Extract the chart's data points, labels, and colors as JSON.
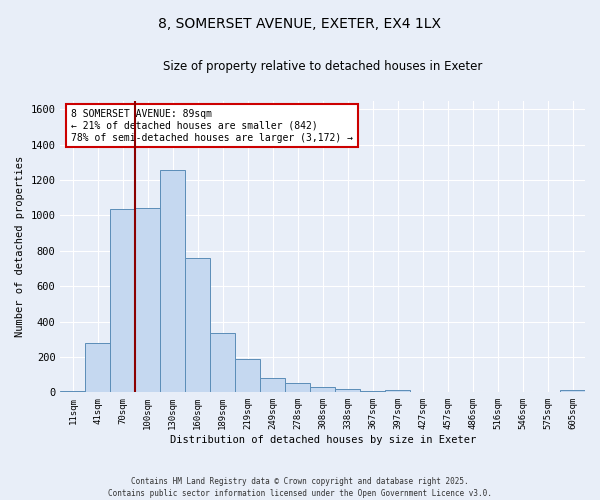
{
  "title": "8, SOMERSET AVENUE, EXETER, EX4 1LX",
  "subtitle": "Size of property relative to detached houses in Exeter",
  "xlabel": "Distribution of detached houses by size in Exeter",
  "ylabel": "Number of detached properties",
  "categories": [
    "11sqm",
    "41sqm",
    "70sqm",
    "100sqm",
    "130sqm",
    "160sqm",
    "189sqm",
    "219sqm",
    "249sqm",
    "278sqm",
    "308sqm",
    "338sqm",
    "367sqm",
    "397sqm",
    "427sqm",
    "457sqm",
    "486sqm",
    "516sqm",
    "546sqm",
    "575sqm",
    "605sqm"
  ],
  "values": [
    5,
    280,
    1035,
    1040,
    1260,
    760,
    335,
    190,
    80,
    50,
    30,
    20,
    5,
    15,
    0,
    0,
    0,
    0,
    0,
    0,
    15
  ],
  "bar_color": "#c5d8f0",
  "bar_edge_color": "#5b8db8",
  "vline_color": "#8b0000",
  "annotation_text": "8 SOMERSET AVENUE: 89sqm\n← 21% of detached houses are smaller (842)\n78% of semi-detached houses are larger (3,172) →",
  "annotation_box_color": "white",
  "annotation_box_edge": "#cc0000",
  "ylim": [
    0,
    1650
  ],
  "yticks": [
    0,
    200,
    400,
    600,
    800,
    1000,
    1200,
    1400,
    1600
  ],
  "background_color": "#e8eef8",
  "grid_color": "#ffffff",
  "footer1": "Contains HM Land Registry data © Crown copyright and database right 2025.",
  "footer2": "Contains public sector information licensed under the Open Government Licence v3.0."
}
